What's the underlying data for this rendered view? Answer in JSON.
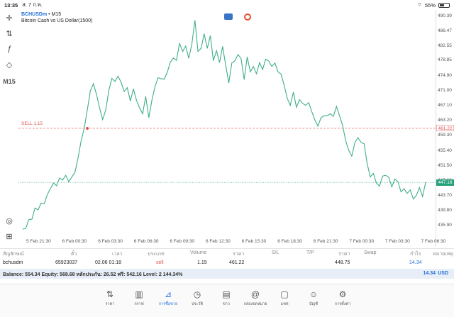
{
  "status": {
    "time": "13:35",
    "date": "ส. 7 ก.พ.",
    "battery": "55%"
  },
  "toolbar": {
    "timeframe": "M15"
  },
  "symbol": {
    "code": "BCHUSDm",
    "timeframe_sep": " • M15",
    "desc": "Bitcoin Cash vs US Dollar(1500)"
  },
  "sell_label": "SELL 1.15",
  "price_ticks": [
    "490.39",
    "486.47",
    "482.55",
    "478.85",
    "474.90",
    "471.00",
    "467.10",
    "463.20",
    "459.30",
    "455.40",
    "451.50",
    "447.60",
    "443.70",
    "439.80",
    "435.90"
  ],
  "price_tags": {
    "red": "461.22",
    "green": "447.16"
  },
  "time_labels": [
    "5 Feb 21:30",
    "6 Feb 00:30",
    "6 Feb 03:30",
    "6 Feb 06:30",
    "6 Feb 09:30",
    "6 Feb 12:30",
    "6 Feb 15:30",
    "6 Feb 18:30",
    "6 Feb 21:30",
    "7 Feb 00:30",
    "7 Feb 03:30",
    "7 Feb 06:30"
  ],
  "table": {
    "headers": [
      "สัญลักษณ์",
      "ตั๋ว",
      "เวลา",
      "ประเภท",
      "Volume",
      "ราคา",
      "S/L",
      "T/P",
      "ราคา",
      "Swap",
      "กำไร",
      "หมายเหตุ"
    ],
    "row": {
      "symbol": "bchusdm",
      "ticket": "65923037",
      "time": "02.06 01:18",
      "type": "sell",
      "volume": "1.15",
      "price": "461.22",
      "sl": "",
      "tp": "",
      "current": "448.75",
      "swap": "",
      "profit": "14.34",
      "note": ""
    }
  },
  "balance": {
    "text": "Balance: 554.34 Equity: 568.68 หลักประกัน: 26.52 ฟรี: 542.16 Level: 2 144.34%",
    "amount": "14.34",
    "currency": "USD"
  },
  "tabs": [
    {
      "label": "ราคา",
      "icon": "arrows-updown-icon"
    },
    {
      "label": "กราฟ",
      "icon": "chart-bars-icon"
    },
    {
      "label": "การซื้อขาย",
      "icon": "trade-chart-icon"
    },
    {
      "label": "ประวัติ",
      "icon": "history-icon"
    },
    {
      "label": "ข่าว",
      "icon": "news-icon"
    },
    {
      "label": "กล่องจดหมาย",
      "icon": "mail-at-icon"
    },
    {
      "label": "แชท",
      "icon": "chat-icon"
    },
    {
      "label": "บัญชี",
      "icon": "account-icon"
    },
    {
      "label": "การตั้งค่า",
      "icon": "settings-icon"
    }
  ],
  "colors": {
    "line": "#3fae85",
    "accent": "#1e6fd9",
    "sell": "#e05050",
    "bid": "#26a17b"
  },
  "chart_data": {
    "type": "line",
    "series": [
      {
        "values": [
          435.0,
          435.2,
          437.5,
          437.6,
          440.5,
          440.0,
          441.8,
          441.6,
          444.0,
          445.5,
          447.0,
          446.3,
          448.3,
          447.8,
          449.0,
          447.3,
          448.6,
          449.8,
          453.5,
          458.0,
          461.2,
          466.0,
          471.0,
          472.8,
          470.0,
          466.5,
          463.5,
          466.0,
          471.0,
          474.2,
          473.4,
          474.8,
          473.2,
          470.8,
          471.8,
          468.3,
          471.5,
          468.5,
          466.5,
          465.0,
          469.5,
          464.0,
          468.5,
          472.0,
          474.4,
          474.1,
          474.0,
          475.8,
          478.4,
          479.5,
          478.9,
          483.3,
          481.2,
          482.6,
          479.4,
          483.2,
          489.3,
          481.2,
          482.0,
          485.8,
          482.0,
          485.3,
          478.8,
          481.4,
          478.3,
          482.5,
          477.6,
          473.0,
          478.2,
          478.8,
          480.4,
          479.4,
          473.9,
          479.8,
          475.9,
          477.3,
          475.4,
          478.3,
          476.5,
          479.2,
          478.7,
          477.3,
          478.2,
          475.9,
          475.3,
          472.5,
          469.0,
          467.2,
          470.6,
          466.7,
          468.7,
          467.7,
          467.2,
          467.9,
          465.5,
          463.4,
          461.8,
          464.0,
          464.5,
          464.5,
          465.0,
          464.3,
          466.9,
          464.5,
          462.0,
          458.0,
          455.5,
          454.0,
          457.5,
          458.8,
          457.6,
          457.2,
          452.0,
          448.6,
          449.5,
          447.0,
          446.2,
          448.8,
          449.0,
          448.5,
          446.0,
          448.0,
          447.3,
          444.7,
          445.5,
          444.3,
          445.2,
          442.8,
          443.8,
          445.8,
          443.5,
          447.2
        ]
      }
    ],
    "x_ticks": [
      "5 Feb 21:30",
      "6 Feb 00:30",
      "6 Feb 03:30",
      "6 Feb 06:30",
      "6 Feb 09:30",
      "6 Feb 12:30",
      "6 Feb 15:30",
      "6 Feb 18:30",
      "6 Feb 21:30",
      "7 Feb 00:30",
      "7 Feb 03:30",
      "7 Feb 06:30"
    ],
    "ylim": [
      433.0,
      492.0
    ],
    "hlines": [
      {
        "label": "SELL 1.15",
        "value": 461.22,
        "color": "#e05050",
        "style": "dashed"
      },
      {
        "value": 447.16,
        "color": "#26a17b",
        "style": "dotted"
      }
    ],
    "grid": false
  }
}
